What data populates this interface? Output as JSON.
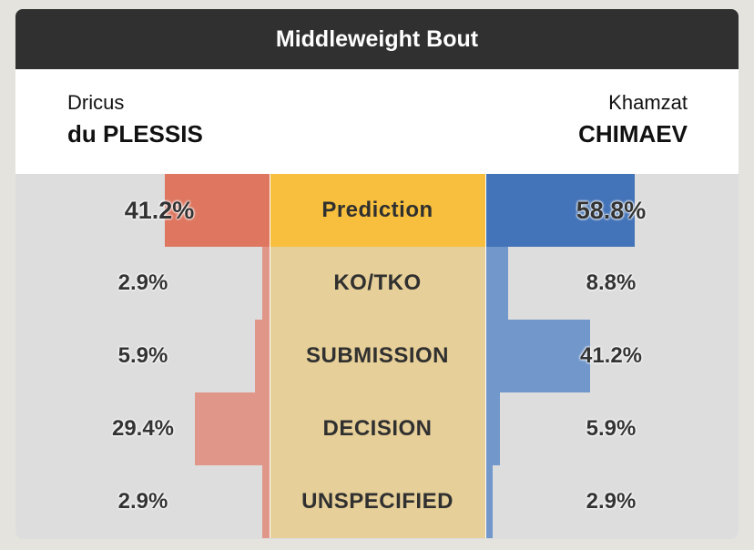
{
  "header": {
    "title": "Middleweight Bout"
  },
  "fighters": {
    "left": {
      "first_name": "Dricus",
      "last_name": "du PLESSIS"
    },
    "right": {
      "first_name": "Khamzat",
      "last_name": "CHIMAEV"
    }
  },
  "colors": {
    "left_strong": "#de7660",
    "left_light": "#e09688",
    "right_strong": "#4373b8",
    "right_light": "#7297cb",
    "center_strong": "#f7bf3d",
    "center_light": "#e6cf98"
  },
  "chart_data": {
    "type": "bar",
    "categories": [
      "Prediction",
      "KO/TKO",
      "SUBMISSION",
      "DECISION",
      "UNSPECIFIED"
    ],
    "series": [
      {
        "name": "du PLESSIS",
        "values": [
          41.2,
          2.9,
          5.9,
          29.4,
          2.9
        ],
        "labels": [
          "41.2%",
          "2.9%",
          "5.9%",
          "29.4%",
          "2.9%"
        ]
      },
      {
        "name": "CHIMAEV",
        "values": [
          58.8,
          8.8,
          41.2,
          5.9,
          2.9
        ],
        "labels": [
          "58.8%",
          "8.8%",
          "41.2%",
          "5.9%",
          "2.9%"
        ]
      }
    ],
    "ylim": [
      0,
      100
    ]
  }
}
